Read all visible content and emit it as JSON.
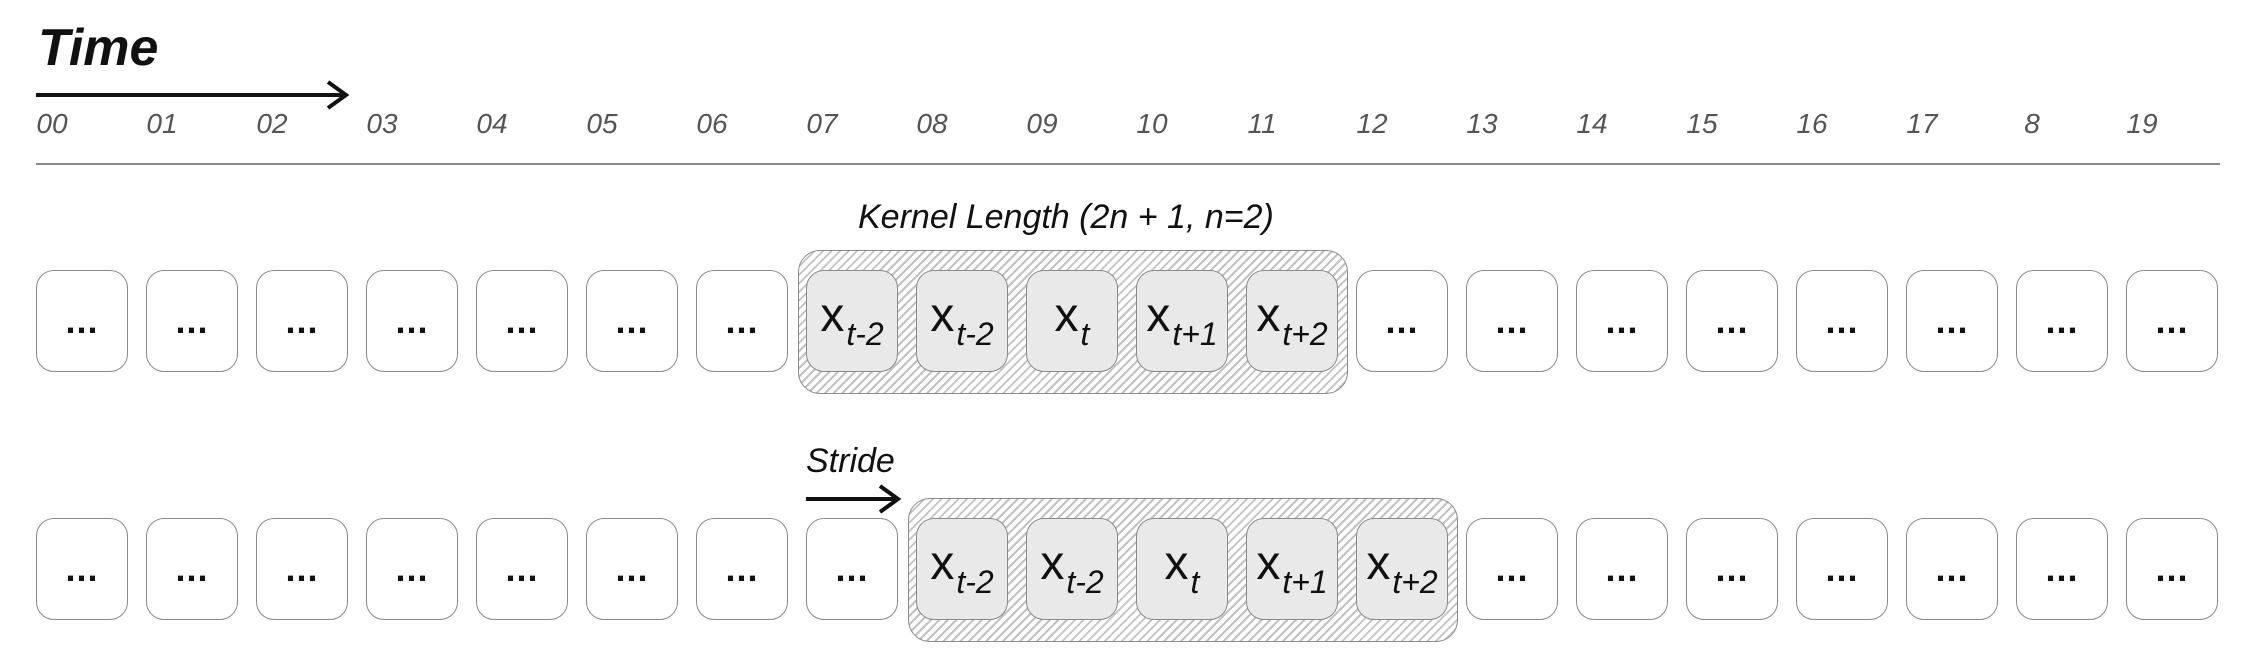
{
  "header": {
    "title": "Time"
  },
  "time_ticks": [
    "00",
    "01",
    "02",
    "03",
    "04",
    "05",
    "06",
    "07",
    "08",
    "09",
    "10",
    "11",
    "12",
    "13",
    "14",
    "15",
    "16",
    "17",
    "8",
    "19"
  ],
  "kernel_label": "Kernel Length (2n + 1, n=2)",
  "stride_label": "Stride",
  "ellipsis": "...",
  "x_main": "x",
  "rows": [
    {
      "cells": [
        "...",
        "...",
        "...",
        "...",
        "...",
        "...",
        "...",
        {
          "sub": "t-2"
        },
        {
          "sub": "t-2"
        },
        {
          "sub": "t"
        },
        {
          "sub": "t+1"
        },
        {
          "sub": "t+2"
        },
        "...",
        "...",
        "...",
        "...",
        "...",
        "...",
        "...",
        "..."
      ]
    },
    {
      "cells": [
        "...",
        "...",
        "...",
        "...",
        "...",
        "...",
        "...",
        "...",
        {
          "sub": "t-2"
        },
        {
          "sub": "t-2"
        },
        {
          "sub": "t"
        },
        {
          "sub": "t+1"
        },
        {
          "sub": "t+2"
        },
        "...",
        "...",
        "...",
        "...",
        "...",
        "...",
        "..."
      ]
    }
  ]
}
